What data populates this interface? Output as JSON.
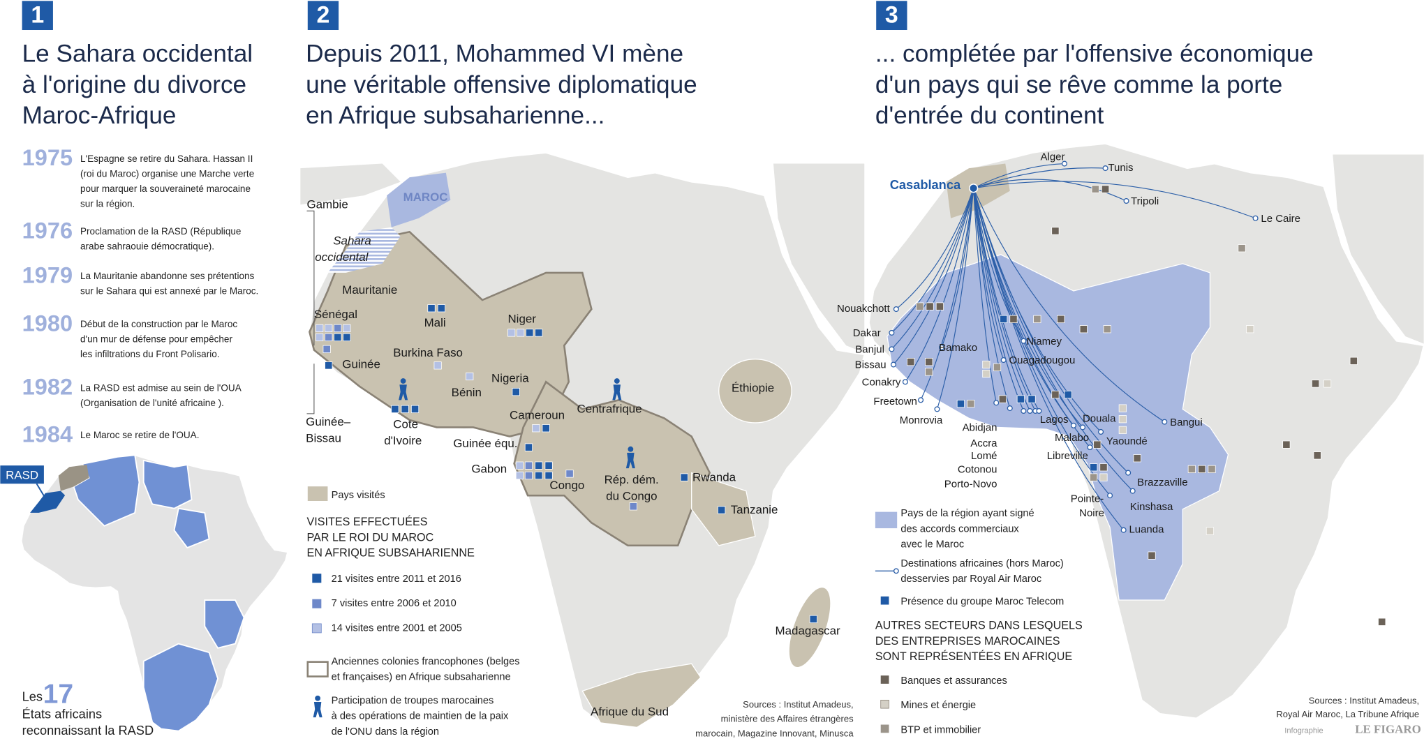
{
  "panel1": {
    "number": "1",
    "title": [
      "Le Sahara occidental",
      "à l'origine du divorce",
      "Maroc-Afrique"
    ],
    "timeline": [
      {
        "year": "1975",
        "lines": [
          "L'Espagne se retire du Sahara. Hassan II",
          "(roi du Maroc) organise une Marche verte",
          "pour marquer la souveraineté marocaine",
          "sur la région."
        ]
      },
      {
        "year": "1976",
        "lines": [
          "Proclamation de la RASD (République",
          "arabe sahraouie démocratique)."
        ]
      },
      {
        "year": "1979",
        "lines": [
          "La Mauritanie abandonne ses prétentions",
          "sur le Sahara qui est annexé par le Maroc."
        ]
      },
      {
        "year": "1980",
        "lines": [
          "Début de la construction par le Maroc",
          "d'un mur de défense pour empêcher",
          "les infiltrations du Front Polisario."
        ]
      },
      {
        "year": "1982",
        "lines": [
          "La RASD est admise au sein de l'OUA",
          "(Organisation de l'unité africaine )."
        ]
      },
      {
        "year": "1984",
        "lines": [
          "Le Maroc se retire de l'OUA."
        ]
      }
    ],
    "map_tag": "RASD",
    "caption_prefix": "Les",
    "caption_count": "17",
    "caption_lines": [
      "États africains",
      "reconnaissant la RASD"
    ]
  },
  "panel2": {
    "number": "2",
    "title": [
      "Depuis 2011, Mohammed VI mène",
      "une véritable offensive diplomatique",
      "en Afrique subsaharienne..."
    ],
    "labels": [
      [
        "MAROC"
      ],
      [
        "Sahara",
        "occidental"
      ],
      [
        "Gambie"
      ],
      [
        "Mauritanie"
      ],
      [
        "Sénégal"
      ],
      [
        "Mali"
      ],
      [
        "Niger"
      ],
      [
        "Burkina Faso"
      ],
      [
        "Guinée"
      ],
      [
        "Nigeria"
      ],
      [
        "Bénin"
      ],
      [
        "Cote",
        "d'Ivoire"
      ],
      [
        "Guinée–",
        "Bissau"
      ],
      [
        "Cameroun"
      ],
      [
        "Centrafrique"
      ],
      [
        "Guinée équ."
      ],
      [
        "Gabon"
      ],
      [
        "Congo"
      ],
      [
        "Rép. dém.",
        "du Congo"
      ],
      [
        "Rwanda"
      ],
      [
        "Tanzanie"
      ],
      [
        "Éthiopie"
      ],
      [
        "Madagascar"
      ],
      [
        "Afrique du Sud"
      ]
    ],
    "legend_visited": "Pays visités",
    "legend_heading": [
      "VISITES EFFECTUÉES",
      "PAR LE ROI DU MAROC",
      "EN AFRIQUE SUBSAHARIENNE"
    ],
    "legend_visits": [
      "21 visites entre 2011 et 2016",
      "7 visites entre 2006 et 2010",
      "14 visites entre 2001 et 2005"
    ],
    "legend_colonies": [
      "Anciennes colonies francophones (belges",
      "et françaises) en Afrique subsaharienne"
    ],
    "legend_troops": [
      "Participation de troupes marocaines",
      "à des opérations de maintien de la paix",
      "de l'ONU dans la région"
    ],
    "sources": [
      "Sources : Institut Amadeus,",
      "ministère des Affaires étrangères",
      "marocain, Magazine Innovant, Minusca"
    ]
  },
  "panel3": {
    "number": "3",
    "title": [
      "... complétée par l'offensive économique",
      "d'un pays qui se rêve comme la porte",
      "d'entrée du continent"
    ],
    "hub": "Casablanca",
    "cities": [
      "Alger",
      "Tunis",
      "Tripoli",
      "Le Caire",
      "Nouakchott",
      "Dakar",
      "Banjul",
      "Bissau",
      "Conakry",
      "Freetown",
      "Monrovia",
      "Bamako",
      "Niamey",
      "Ouagadougou",
      "Abidjan",
      "Accra",
      "Lomé",
      "Cotonou",
      "Porto-Novo",
      "Lagos",
      "Douala",
      "Malabo",
      "Yaoundé",
      "Libreville",
      "Bangui",
      "Brazzaville",
      "Pointe-",
      "Noire",
      "Kinshasa",
      "Luanda"
    ],
    "legend_signed": [
      "Pays de la région ayant signé",
      "des accords commerciaux",
      "avec le Maroc"
    ],
    "legend_routes": [
      "Destinations africaines (hors Maroc)",
      "desservies par Royal Air Maroc"
    ],
    "legend_telecom": "Présence du groupe Maroc Telecom",
    "legend_heading": [
      "AUTRES SECTEURS DANS LESQUELS",
      "DES ENTREPRISES MAROCAINES",
      "SONT REPRÉSENTÉES EN AFRIQUE"
    ],
    "legend_sectors": [
      "Banques et assurances",
      "Mines et énergie",
      "BTP et immobilier"
    ],
    "sources": [
      "Sources : Institut Amadeus,",
      "Royal Air Maroc, La Tribune Afrique"
    ],
    "credit": "Infographie",
    "brand": "LE FIGARO"
  }
}
